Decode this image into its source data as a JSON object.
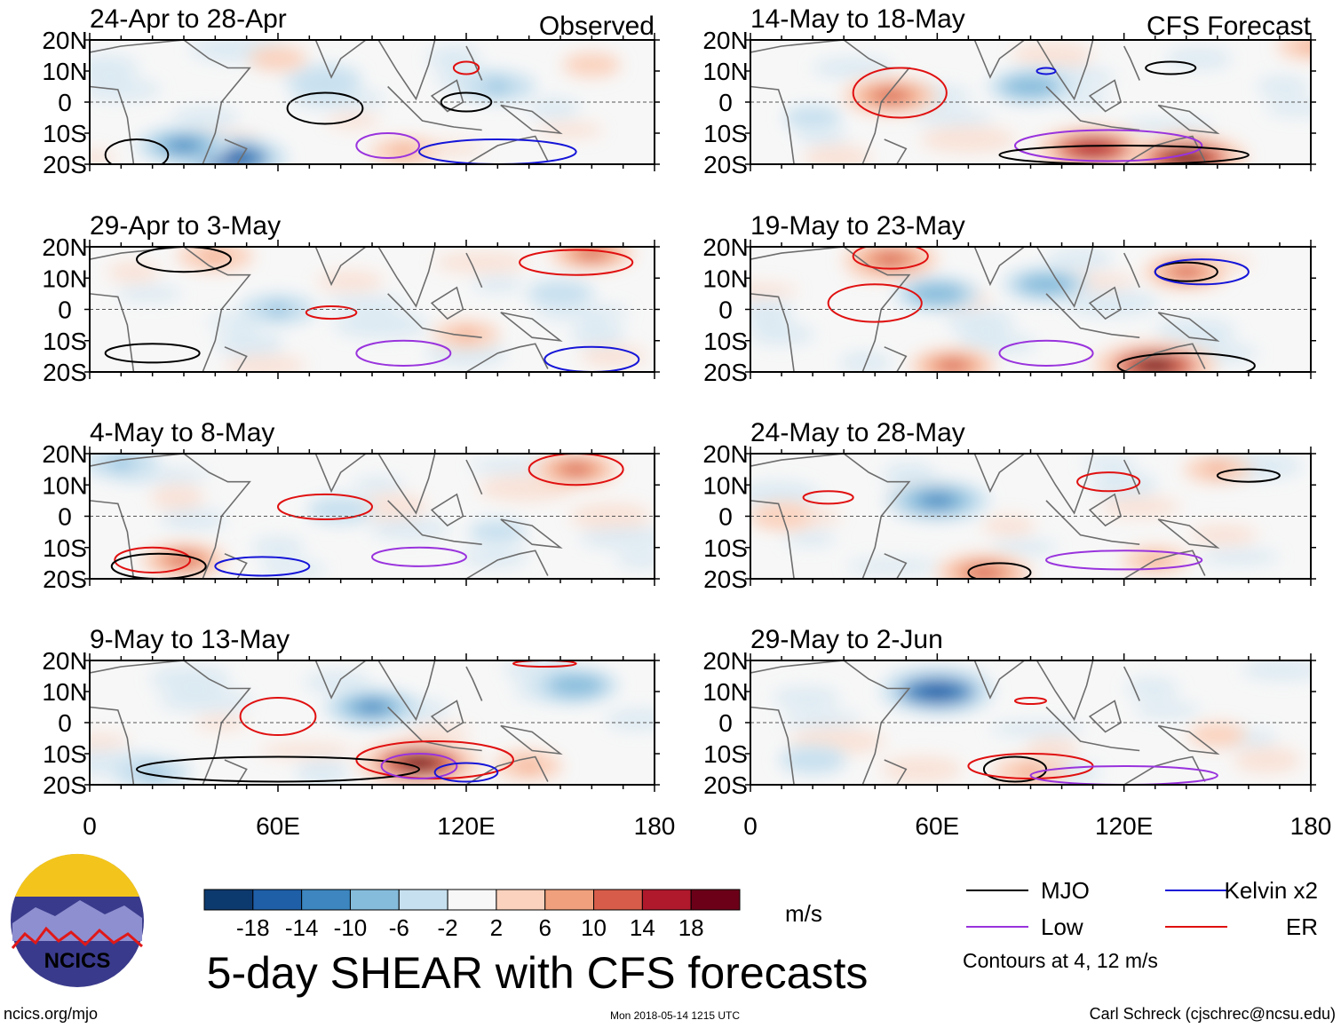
{
  "chart_data": {
    "type": "heatmap",
    "title": "5-day SHEAR with CFS forecasts",
    "units": "m/s",
    "column_headers": [
      "Observed",
      "CFS Forecast"
    ],
    "x_ticks": [
      "0",
      "60E",
      "120E",
      "180"
    ],
    "y_ticks": [
      "20N",
      "10N",
      "0",
      "10S",
      "20S"
    ],
    "x_range_deg": [
      0,
      180
    ],
    "y_range_deg": [
      -20,
      20
    ],
    "colorbar": {
      "ticks": [
        "-18",
        "-14",
        "-10",
        "-6",
        "-2",
        "2",
        "6",
        "10",
        "14",
        "18"
      ],
      "colors": [
        "#0d3a6e",
        "#1f5fa8",
        "#3d86c0",
        "#85bcdc",
        "#c7e0ef",
        "#f7f7f7",
        "#fbd2bd",
        "#f0a07c",
        "#d75d4a",
        "#b0192c",
        "#6b0018"
      ]
    },
    "legend": {
      "items": [
        {
          "label": "MJO",
          "color": "#000000"
        },
        {
          "label": "Kelvin x2",
          "color": "#1515d8"
        },
        {
          "label": "Low",
          "color": "#9933dd"
        },
        {
          "label": "ER",
          "color": "#e01010"
        }
      ],
      "note": "Contours at 4, 12 m/s"
    },
    "panels": [
      {
        "period": "24-Apr to 28-Apr",
        "source": "Observed",
        "shaded": [
          {
            "lon": 45,
            "lat": -18,
            "value": -16
          },
          {
            "lon": 30,
            "lat": -14,
            "value": -12
          },
          {
            "lon": 60,
            "lat": 14,
            "value": 4
          },
          {
            "lon": 100,
            "lat": -16,
            "value": 6
          },
          {
            "lon": 160,
            "lat": 12,
            "value": 4
          },
          {
            "lon": 75,
            "lat": 6,
            "value": -6
          },
          {
            "lon": 130,
            "lat": 5,
            "value": -8
          }
        ],
        "contours": [
          {
            "type": "MJO",
            "lon": 15,
            "lat": -17,
            "rx": 10,
            "ry": 5
          },
          {
            "type": "MJO",
            "lon": 75,
            "lat": -2,
            "rx": 12,
            "ry": 5
          },
          {
            "type": "MJO",
            "lon": 120,
            "lat": 0,
            "rx": 8,
            "ry": 3
          },
          {
            "type": "Low",
            "lon": 95,
            "lat": -14,
            "rx": 10,
            "ry": 4
          },
          {
            "type": "Kelvin x2",
            "lon": 130,
            "lat": -16,
            "rx": 25,
            "ry": 4
          },
          {
            "type": "ER",
            "lon": 120,
            "lat": 11,
            "rx": 4,
            "ry": 2
          }
        ]
      },
      {
        "period": "14-May to 18-May",
        "source": "CFS Forecast",
        "shaded": [
          {
            "lon": 45,
            "lat": 2,
            "value": 12
          },
          {
            "lon": 110,
            "lat": -15,
            "value": 16
          },
          {
            "lon": 140,
            "lat": -18,
            "value": 18
          },
          {
            "lon": 90,
            "lat": 5,
            "value": -10
          },
          {
            "lon": 180,
            "lat": 18,
            "value": 6
          },
          {
            "lon": 20,
            "lat": -5,
            "value": -4
          }
        ],
        "contours": [
          {
            "type": "ER",
            "lon": 48,
            "lat": 3,
            "rx": 15,
            "ry": 8
          },
          {
            "type": "Low",
            "lon": 115,
            "lat": -14,
            "rx": 30,
            "ry": 5
          },
          {
            "type": "MJO",
            "lon": 120,
            "lat": -17,
            "rx": 40,
            "ry": 3
          },
          {
            "type": "MJO",
            "lon": 135,
            "lat": 11,
            "rx": 8,
            "ry": 2
          },
          {
            "type": "Kelvin x2",
            "lon": 95,
            "lat": 10,
            "rx": 3,
            "ry": 1
          }
        ]
      },
      {
        "period": "29-Apr to 3-May",
        "source": "Observed",
        "shaded": [
          {
            "lon": 40,
            "lat": 17,
            "value": 8
          },
          {
            "lon": 160,
            "lat": 18,
            "value": 10
          },
          {
            "lon": 120,
            "lat": -8,
            "value": 6
          },
          {
            "lon": 60,
            "lat": 0,
            "value": -8
          },
          {
            "lon": 150,
            "lat": 5,
            "value": -6
          }
        ],
        "contours": [
          {
            "type": "MJO",
            "lon": 30,
            "lat": 16,
            "rx": 15,
            "ry": 4
          },
          {
            "type": "MJO",
            "lon": 20,
            "lat": -14,
            "rx": 15,
            "ry": 3
          },
          {
            "type": "ER",
            "lon": 77,
            "lat": -1,
            "rx": 8,
            "ry": 2
          },
          {
            "type": "ER",
            "lon": 155,
            "lat": 15,
            "rx": 18,
            "ry": 4
          },
          {
            "type": "Low",
            "lon": 100,
            "lat": -14,
            "rx": 15,
            "ry": 4
          },
          {
            "type": "Kelvin x2",
            "lon": 160,
            "lat": -16,
            "rx": 15,
            "ry": 4
          }
        ]
      },
      {
        "period": "19-May to 23-May",
        "source": "CFS Forecast",
        "shaded": [
          {
            "lon": 45,
            "lat": 16,
            "value": 12
          },
          {
            "lon": 130,
            "lat": -18,
            "value": 18
          },
          {
            "lon": 65,
            "lat": -18,
            "value": 10
          },
          {
            "lon": 140,
            "lat": 12,
            "value": 10
          },
          {
            "lon": 60,
            "lat": 5,
            "value": -10
          },
          {
            "lon": 95,
            "lat": 8,
            "value": -10
          }
        ],
        "contours": [
          {
            "type": "ER",
            "lon": 40,
            "lat": 2,
            "rx": 15,
            "ry": 6
          },
          {
            "type": "ER",
            "lon": 45,
            "lat": 17,
            "rx": 12,
            "ry": 4
          },
          {
            "type": "MJO",
            "lon": 140,
            "lat": 12,
            "rx": 10,
            "ry": 3
          },
          {
            "type": "Kelvin x2",
            "lon": 145,
            "lat": 12,
            "rx": 15,
            "ry": 4
          },
          {
            "type": "Low",
            "lon": 95,
            "lat": -14,
            "rx": 15,
            "ry": 4
          },
          {
            "type": "MJO",
            "lon": 140,
            "lat": -18,
            "rx": 22,
            "ry": 4
          }
        ]
      },
      {
        "period": "4-May to 8-May",
        "source": "Observed",
        "shaded": [
          {
            "lon": 30,
            "lat": -14,
            "value": 10
          },
          {
            "lon": 155,
            "lat": 15,
            "value": 10
          },
          {
            "lon": 10,
            "lat": 17,
            "value": -8
          },
          {
            "lon": 80,
            "lat": 2,
            "value": -6
          },
          {
            "lon": 130,
            "lat": -5,
            "value": -4
          }
        ],
        "contours": [
          {
            "type": "ER",
            "lon": 75,
            "lat": 3,
            "rx": 15,
            "ry": 4
          },
          {
            "type": "ER",
            "lon": 155,
            "lat": 15,
            "rx": 15,
            "ry": 5
          },
          {
            "type": "ER",
            "lon": 20,
            "lat": -14,
            "rx": 12,
            "ry": 4
          },
          {
            "type": "MJO",
            "lon": 22,
            "lat": -16,
            "rx": 15,
            "ry": 4
          },
          {
            "type": "Low",
            "lon": 105,
            "lat": -13,
            "rx": 15,
            "ry": 3
          },
          {
            "type": "Kelvin x2",
            "lon": 55,
            "lat": -16,
            "rx": 15,
            "ry": 3
          }
        ]
      },
      {
        "period": "24-May to 28-May",
        "source": "CFS Forecast",
        "shaded": [
          {
            "lon": 60,
            "lat": 5,
            "value": -14
          },
          {
            "lon": 75,
            "lat": -18,
            "value": 12
          },
          {
            "lon": 130,
            "lat": -14,
            "value": 6
          },
          {
            "lon": 150,
            "lat": 15,
            "value": 6
          },
          {
            "lon": 10,
            "lat": 0,
            "value": 4
          }
        ],
        "contours": [
          {
            "type": "ER",
            "lon": 115,
            "lat": 11,
            "rx": 10,
            "ry": 3
          },
          {
            "type": "MJO",
            "lon": 160,
            "lat": 13,
            "rx": 10,
            "ry": 2
          },
          {
            "type": "MJO",
            "lon": 80,
            "lat": -18,
            "rx": 10,
            "ry": 3
          },
          {
            "type": "Low",
            "lon": 120,
            "lat": -14,
            "rx": 25,
            "ry": 3
          },
          {
            "type": "ER",
            "lon": 25,
            "lat": 6,
            "rx": 8,
            "ry": 2
          }
        ]
      },
      {
        "period": "9-May to 13-May",
        "source": "Observed",
        "shaded": [
          {
            "lon": 105,
            "lat": -13,
            "value": 18
          },
          {
            "lon": 90,
            "lat": 5,
            "value": -12
          },
          {
            "lon": 155,
            "lat": 12,
            "value": -10
          },
          {
            "lon": 20,
            "lat": -16,
            "value": -8
          },
          {
            "lon": 140,
            "lat": -14,
            "value": 6
          }
        ],
        "contours": [
          {
            "type": "ER",
            "lon": 60,
            "lat": 2,
            "rx": 12,
            "ry": 6
          },
          {
            "type": "ER",
            "lon": 110,
            "lat": -12,
            "rx": 25,
            "ry": 6
          },
          {
            "type": "MJO",
            "lon": 60,
            "lat": -15,
            "rx": 45,
            "ry": 4
          },
          {
            "type": "Low",
            "lon": 105,
            "lat": -14,
            "rx": 12,
            "ry": 4
          },
          {
            "type": "Kelvin x2",
            "lon": 120,
            "lat": -16,
            "rx": 10,
            "ry": 3
          },
          {
            "type": "ER",
            "lon": 145,
            "lat": 19,
            "rx": 10,
            "ry": 1
          }
        ]
      },
      {
        "period": "29-May to 2-Jun",
        "source": "CFS Forecast",
        "shaded": [
          {
            "lon": 60,
            "lat": 10,
            "value": -16
          },
          {
            "lon": 90,
            "lat": -16,
            "value": 8
          },
          {
            "lon": 20,
            "lat": -12,
            "value": -6
          },
          {
            "lon": 150,
            "lat": -4,
            "value": 4
          }
        ],
        "contours": [
          {
            "type": "MJO",
            "lon": 85,
            "lat": -15,
            "rx": 10,
            "ry": 4
          },
          {
            "type": "ER",
            "lon": 90,
            "lat": -14,
            "rx": 20,
            "ry": 4
          },
          {
            "type": "Low",
            "lon": 120,
            "lat": -17,
            "rx": 30,
            "ry": 3
          },
          {
            "type": "ER",
            "lon": 90,
            "lat": 7,
            "rx": 5,
            "ry": 1
          }
        ]
      }
    ]
  },
  "logo": {
    "label": "NCICS"
  },
  "footer": {
    "website": "ncics.org/mjo",
    "timestamp": "Mon 2018-05-14 1215 UTC",
    "credit": "Carl Schreck (cjschrec@ncsu.edu)"
  }
}
